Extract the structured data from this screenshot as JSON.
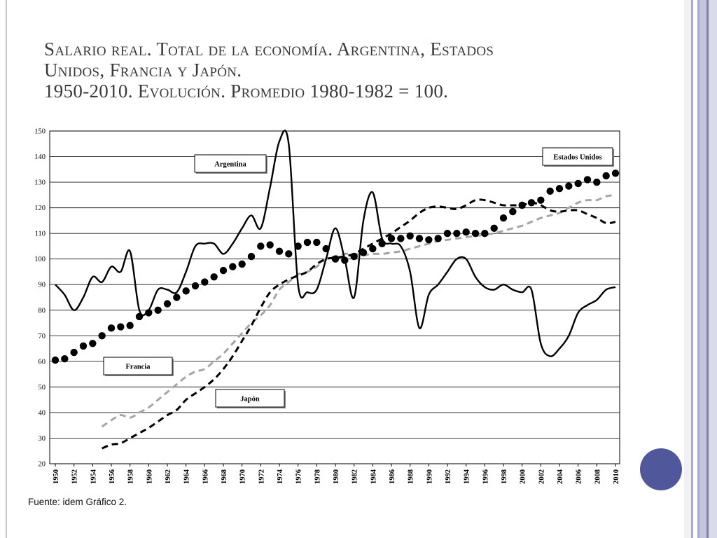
{
  "title": {
    "line1": "Salario real. Total de la economía. Argentina, Estados",
    "line2": "Unidos, Francia y Japón.",
    "line3": "1950-2010. Evolución. Promedio 1980-1982 = 100."
  },
  "source": "Fuente: idem Gráfico 2.",
  "colors": {
    "title": "#3a3a3a",
    "accent_circle": "#50579a",
    "argentina": "#000000",
    "estados_unidos": "#000000",
    "francia": "#a6a6a6",
    "japon": "#000000"
  },
  "chart_data": {
    "type": "line",
    "x": [
      1950,
      1951,
      1952,
      1953,
      1954,
      1955,
      1956,
      1957,
      1958,
      1959,
      1960,
      1961,
      1962,
      1963,
      1964,
      1965,
      1966,
      1967,
      1968,
      1969,
      1970,
      1971,
      1972,
      1973,
      1974,
      1975,
      1976,
      1977,
      1978,
      1979,
      1980,
      1981,
      1982,
      1983,
      1984,
      1985,
      1986,
      1987,
      1988,
      1989,
      1990,
      1991,
      1992,
      1993,
      1994,
      1995,
      1996,
      1997,
      1998,
      1999,
      2000,
      2001,
      2002,
      2003,
      2004,
      2005,
      2006,
      2007,
      2008,
      2009,
      2010
    ],
    "xticks": [
      1950,
      1952,
      1954,
      1956,
      1958,
      1960,
      1962,
      1964,
      1966,
      1968,
      1970,
      1972,
      1974,
      1976,
      1978,
      1980,
      1982,
      1984,
      1986,
      1988,
      1990,
      1992,
      1994,
      1996,
      1998,
      2000,
      2002,
      2004,
      2006,
      2008,
      2010
    ],
    "ylim": [
      20,
      150
    ],
    "yticks": [
      20,
      30,
      40,
      50,
      60,
      70,
      80,
      90,
      100,
      110,
      120,
      130,
      140,
      150
    ],
    "grid": "horizontal",
    "series": [
      {
        "name": "Argentina",
        "style": "solid",
        "values": [
          90,
          86,
          80,
          85,
          93,
          91,
          97,
          95,
          103,
          80,
          80,
          88,
          88,
          87,
          95,
          105,
          106,
          106,
          102,
          106,
          112,
          117,
          112,
          128,
          146,
          145,
          90,
          87,
          88,
          100,
          112,
          100,
          85,
          115,
          126,
          108,
          106,
          105,
          95,
          73,
          86,
          90,
          95,
          100,
          100,
          93,
          89,
          88,
          90,
          88,
          87,
          88,
          67,
          62,
          65,
          70,
          79,
          82,
          84,
          88,
          89
        ]
      },
      {
        "name": "Estados Unidos",
        "style": "dots",
        "values": [
          60.5,
          61,
          63.5,
          66,
          67,
          70,
          73,
          73.5,
          74,
          77.5,
          79,
          80,
          82.5,
          85,
          87.5,
          89.5,
          91,
          93,
          95.5,
          97,
          98,
          101,
          105,
          105.5,
          103,
          102,
          105,
          106.5,
          106.5,
          104,
          100,
          99.5,
          101,
          102.5,
          104,
          106,
          108,
          108,
          109,
          108,
          107.5,
          108,
          110,
          110,
          110.5,
          110,
          110,
          112,
          116,
          118.5,
          121,
          122,
          123,
          126.5,
          127.5,
          128.5,
          129.5,
          131,
          130,
          132.5,
          133.5
        ]
      },
      {
        "name": "Francia",
        "style": "dashed",
        "values": [
          null,
          null,
          null,
          null,
          null,
          34.5,
          37,
          39,
          38,
          40,
          42,
          45,
          48,
          51,
          54,
          56,
          57,
          60,
          63,
          67,
          71,
          75,
          78,
          82,
          88,
          91,
          94,
          95,
          97,
          100,
          101,
          102,
          102,
          101.5,
          102,
          102,
          102.5,
          103,
          104,
          105,
          106,
          107,
          107.5,
          108,
          108.5,
          109,
          109.5,
          110,
          111,
          112,
          113,
          114.5,
          116,
          117,
          118,
          120,
          122,
          123,
          123,
          124.5,
          125
        ]
      },
      {
        "name": "Japón",
        "style": "dashed",
        "values": [
          null,
          null,
          null,
          null,
          null,
          26,
          27.5,
          28,
          30,
          32,
          34,
          36.5,
          39,
          41,
          45,
          47.5,
          50,
          53,
          57,
          62,
          68,
          74,
          81,
          87,
          90,
          92,
          93.5,
          95,
          98,
          100,
          100.5,
          101,
          102,
          104,
          106,
          108,
          110,
          112.5,
          115,
          118,
          120,
          120.5,
          120,
          119.5,
          121,
          123,
          123,
          122,
          121,
          121,
          121,
          122,
          121,
          119,
          118.5,
          119,
          119,
          117.5,
          116,
          114,
          114.5
        ]
      }
    ],
    "annotations": [
      {
        "label": "Argentina",
        "series": "Argentina"
      },
      {
        "label": "Estados Unidos",
        "series": "Estados Unidos"
      },
      {
        "label": "Francia",
        "series": "Francia"
      },
      {
        "label": "Japón",
        "series": "Japón"
      }
    ]
  }
}
